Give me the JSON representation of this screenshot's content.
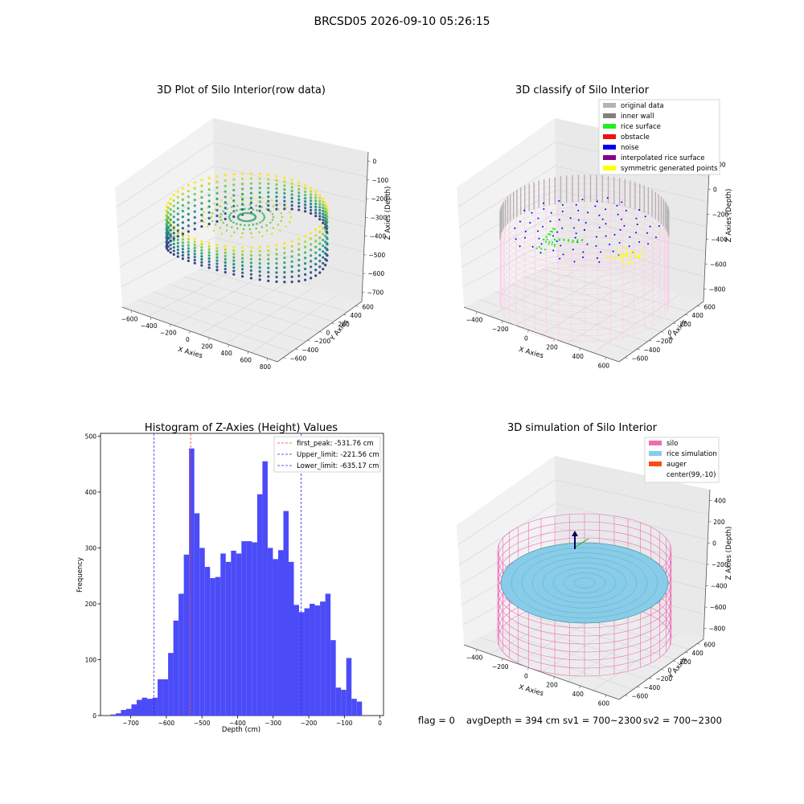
{
  "figure": {
    "suptitle": "BRCSD05 2026-09-10 05:26:15",
    "footer": {
      "flag": "flag = 0",
      "avg_depth": "avgDepth = 394 cm",
      "sv1": "sv1 = 700~2300",
      "sv2": "sv2 = 700~2300"
    }
  },
  "colors": {
    "hist_bar": "#4b4bf8",
    "first_peak_line": "#e8413c",
    "limit_line": "#2a2af0",
    "silo": "#f06bb8",
    "rice_simulation": "#87cce8",
    "auger": "#ff4a12",
    "original_data": "#b3b3b3",
    "inner_wall": "#808080",
    "rice_surface": "#22ee22",
    "obstacle": "#ee1111",
    "noise": "#0000ee",
    "interpolated_rice_surface": "#880088",
    "symmetric_generated_points": "#ffff00"
  },
  "chart_data": [
    {
      "type": "scatter",
      "title": "3D Plot of Silo Interior(row data)",
      "xlabel": "X Axies",
      "ylabel": "Y Axies",
      "zlabel": "Z Axies (Depth)",
      "x_ticks": [
        "−600",
        "−400",
        "−200",
        "0",
        "200",
        "400",
        "600",
        "800"
      ],
      "y_ticks": [
        "−600",
        "−400",
        "−200",
        "0",
        "200",
        "400",
        "600"
      ],
      "z_ticks": [
        "0",
        "−100",
        "−200",
        "−300",
        "−400",
        "−500",
        "−600",
        "−700"
      ],
      "xlim": [
        -650,
        800
      ],
      "ylim": [
        -650,
        650
      ],
      "zlim": [
        -780,
        0
      ],
      "colormap": "viridis"
    },
    {
      "type": "scatter",
      "title": "3D classify of Silo Interior",
      "xlabel": "X Axies",
      "ylabel": "Y Axies",
      "zlabel": "Z Axies (Depth)",
      "x_ticks": [
        "−400",
        "−200",
        "0",
        "200",
        "400",
        "600"
      ],
      "y_ticks": [
        "−600",
        "−400",
        "−200",
        "0",
        "200",
        "400",
        "600"
      ],
      "z_ticks": [
        "200",
        "0",
        "−200",
        "−400",
        "−600",
        "−800"
      ],
      "legend_position": "top-right",
      "legend": [
        "original data",
        "inner wall",
        "rice surface",
        "obstacle",
        "noise",
        "interpolated rice surface",
        "symmetric generated points"
      ]
    },
    {
      "type": "bar",
      "title": "Histogram of Z-Axies (Height) Values",
      "xlabel": "Depth (cm)",
      "ylabel": "Frequency",
      "xlim": [
        -785,
        10
      ],
      "ylim": [
        0,
        505
      ],
      "x_ticks": [
        -700,
        -600,
        -500,
        -400,
        -300,
        -200,
        -100,
        0
      ],
      "x_tick_labels": [
        "−700",
        "−600",
        "−500",
        "−400",
        "−300",
        "−200",
        "−100",
        "0"
      ],
      "y_ticks": [
        0,
        100,
        200,
        300,
        400,
        500
      ],
      "bin_start": -757,
      "bin_width": 14.72,
      "values": [
        2,
        4,
        10,
        12,
        20,
        28,
        32,
        30,
        32,
        65,
        65,
        112,
        170,
        218,
        288,
        478,
        362,
        300,
        266,
        246,
        248,
        290,
        275,
        295,
        290,
        312,
        312,
        310,
        396,
        455,
        300,
        280,
        296,
        366,
        275,
        198,
        185,
        192,
        200,
        197,
        204,
        218,
        135,
        50,
        46,
        103,
        30,
        25
      ],
      "legend_position": "top-right",
      "lines": [
        {
          "label": "first_peak: -531.76 cm",
          "x": -531.76,
          "style": "first_peak"
        },
        {
          "label": "Upper_limit: -221.56 cm",
          "x": -221.56,
          "style": "limit"
        },
        {
          "label": "Lower_limit: -635.17 cm",
          "x": -635.17,
          "style": "limit"
        }
      ]
    },
    {
      "type": "scatter",
      "title": "3D simulation of Silo Interior",
      "xlabel": "X Axies",
      "ylabel": "Y Axies",
      "zlabel": "Z Axies (Depth)",
      "x_ticks": [
        "−400",
        "−200",
        "0",
        "200",
        "400",
        "600"
      ],
      "y_ticks": [
        "−600",
        "−400",
        "−200",
        "0",
        "200",
        "400",
        "600"
      ],
      "z_ticks": [
        "400",
        "200",
        "0",
        "−200",
        "−400",
        "−600",
        "−800"
      ],
      "legend_position": "top-right",
      "legend": [
        "silo",
        "rice simulation",
        "auger",
        "center(99,-10)"
      ]
    }
  ]
}
